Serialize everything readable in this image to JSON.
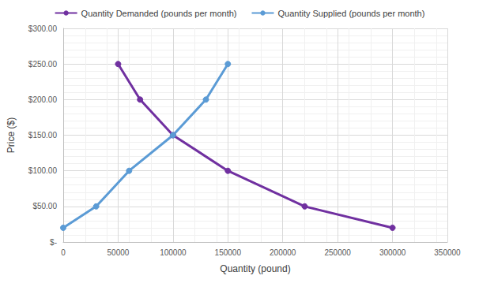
{
  "chart_data": {
    "type": "line",
    "x_label": "Quantity (pound)",
    "y_label": "Price ($)",
    "series": [
      {
        "name": "Quantity Demanded (pounds per month)",
        "color": "#7030a0",
        "marker": "circle",
        "x": [
          50000,
          70000,
          100000,
          150000,
          220000,
          300000
        ],
        "values": [
          250,
          200,
          150,
          100,
          50,
          20
        ]
      },
      {
        "name": "Quantity Supplied (pounds per month)",
        "color": "#5b9bd5",
        "marker": "circle",
        "x": [
          0,
          30000,
          60000,
          100000,
          130000,
          150000
        ],
        "values": [
          20,
          50,
          100,
          150,
          200,
          250
        ]
      }
    ],
    "xlim": [
      0,
      350000
    ],
    "xticks": [
      0,
      50000,
      100000,
      150000,
      200000,
      250000,
      300000,
      350000
    ],
    "ylim": [
      0,
      300
    ],
    "yticks": [
      {
        "value": 0,
        "label": "$-"
      },
      {
        "value": 50,
        "label": "$50.00"
      },
      {
        "value": 100,
        "label": "$100.00"
      },
      {
        "value": 150,
        "label": "$150.00"
      },
      {
        "value": 200,
        "label": "$200.00"
      },
      {
        "value": 250,
        "label": "$250.00"
      },
      {
        "value": 300,
        "label": "$300.00"
      }
    ],
    "grid": true,
    "legend": "top"
  }
}
